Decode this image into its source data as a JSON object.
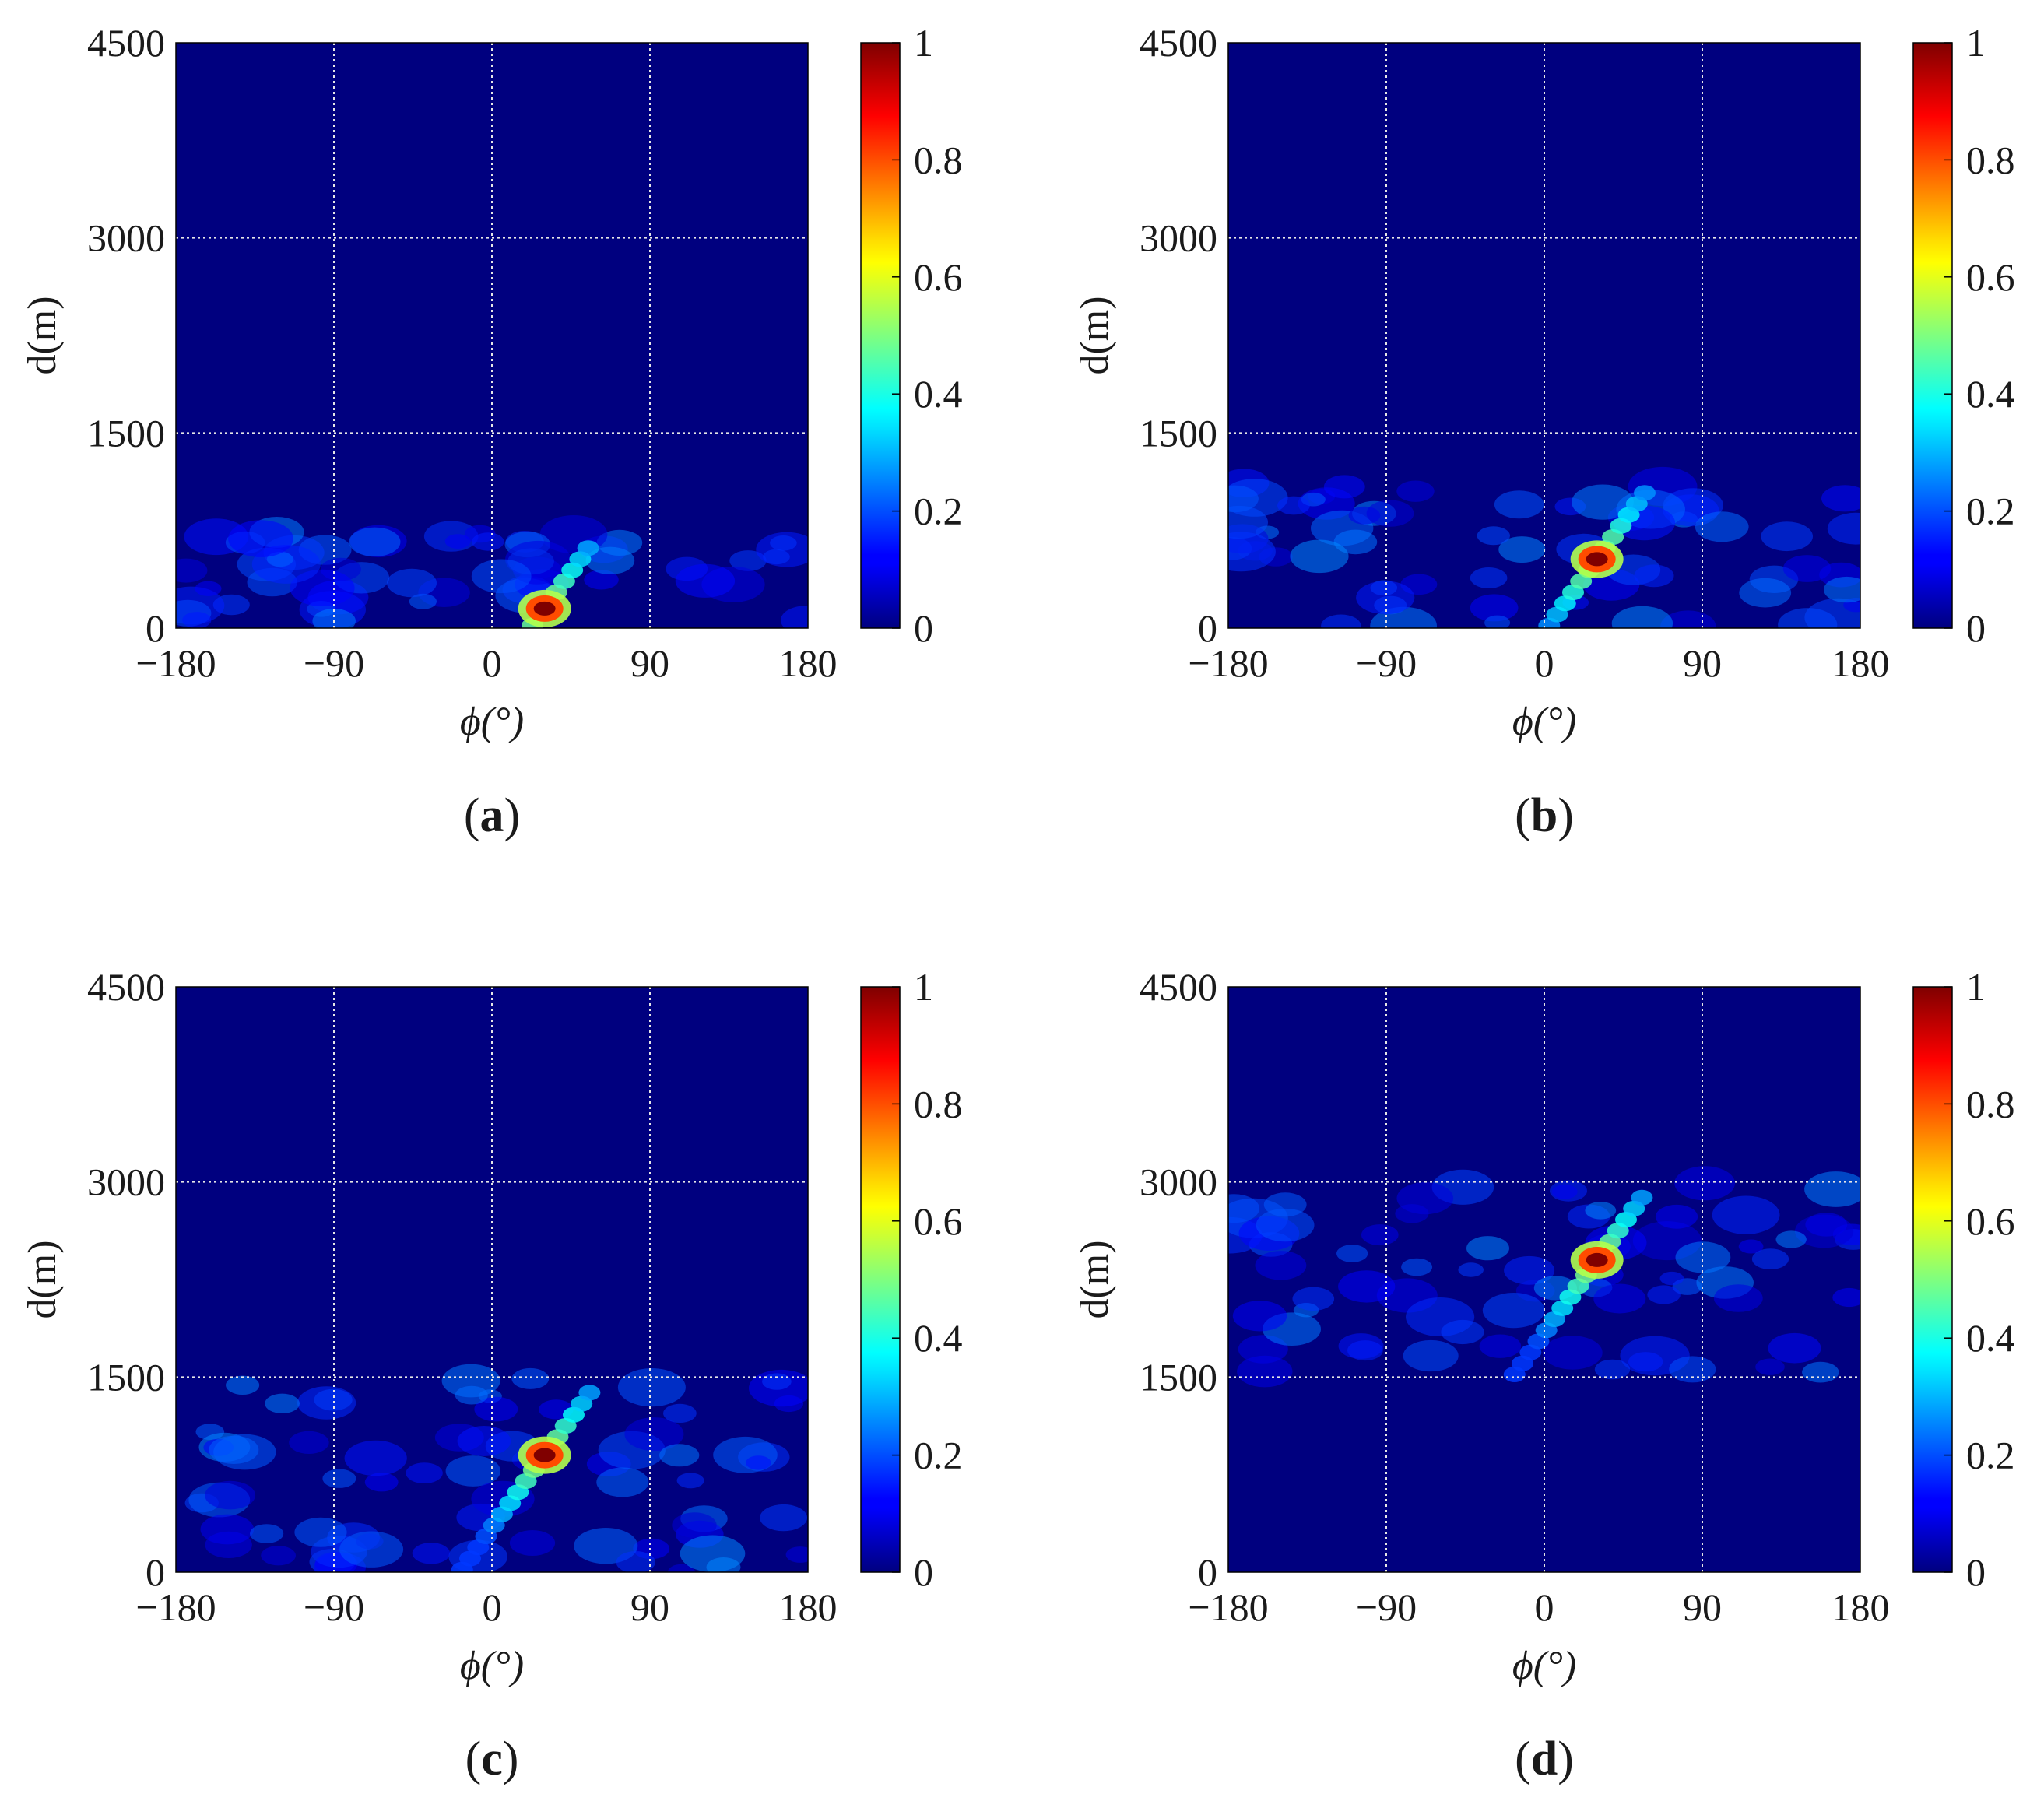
{
  "figure": {
    "colormap": "jet",
    "colors": {
      "background_field": "#00007f",
      "grid": "#e6e6e6",
      "frame": "#000000",
      "text": "#1a1a1a"
    }
  },
  "chart_data": [
    {
      "type": "heatmap",
      "panel_label": "(a)",
      "panel_label_letter": "a",
      "xlabel": "ϕ(°)",
      "ylabel": "d(m)",
      "xlim": [
        -180,
        180
      ],
      "ylim": [
        0,
        4500
      ],
      "xticks": [
        -180,
        -90,
        0,
        90,
        180
      ],
      "xtick_labels": [
        "−180",
        "−90",
        "0",
        "90",
        "180"
      ],
      "yticks": [
        0,
        1500,
        3000,
        4500
      ],
      "ytick_labels": [
        "0",
        "1500",
        "3000",
        "4500"
      ],
      "colorbar": {
        "range": [
          0,
          1
        ],
        "ticks": [
          "0",
          "0.2",
          "0.4",
          "0.6",
          "0.8",
          "1"
        ]
      },
      "grid": true,
      "region_d_range": [
        0,
        750
      ],
      "peak": {
        "phi": 30,
        "d": 150,
        "value": 1.0
      }
    },
    {
      "type": "heatmap",
      "panel_label": "(b)",
      "panel_label_letter": "b",
      "xlabel": "ϕ(°)",
      "ylabel": "d(m)",
      "xlim": [
        -180,
        180
      ],
      "ylim": [
        0,
        4500
      ],
      "xticks": [
        -180,
        -90,
        0,
        90,
        180
      ],
      "xtick_labels": [
        "−180",
        "−90",
        "0",
        "90",
        "180"
      ],
      "yticks": [
        0,
        1500,
        3000,
        4500
      ],
      "ytick_labels": [
        "0",
        "1500",
        "3000",
        "4500"
      ],
      "colorbar": {
        "range": [
          0,
          1
        ],
        "ticks": [
          "0",
          "0.2",
          "0.4",
          "0.6",
          "0.8",
          "1"
        ]
      },
      "grid": true,
      "region_d_range": [
        0,
        1120
      ],
      "peak": {
        "phi": 30,
        "d": 530,
        "value": 1.0
      }
    },
    {
      "type": "heatmap",
      "panel_label": "(c)",
      "panel_label_letter": "c",
      "xlabel": "ϕ(°)",
      "ylabel": "d(m)",
      "xlim": [
        -180,
        180
      ],
      "ylim": [
        0,
        4500
      ],
      "xticks": [
        -180,
        -90,
        0,
        90,
        180
      ],
      "xtick_labels": [
        "−180",
        "−90",
        "0",
        "90",
        "180"
      ],
      "yticks": [
        0,
        1500,
        3000,
        4500
      ],
      "ytick_labels": [
        "0",
        "1500",
        "3000",
        "4500"
      ],
      "colorbar": {
        "range": [
          0,
          1
        ],
        "ticks": [
          "0",
          "0.2",
          "0.4",
          "0.6",
          "0.8",
          "1"
        ]
      },
      "grid": true,
      "region_d_range": [
        0,
        1500
      ],
      "peak": {
        "phi": 30,
        "d": 900,
        "value": 1.0
      }
    },
    {
      "type": "heatmap",
      "panel_label": "(d)",
      "panel_label_letter": "d",
      "xlabel": "ϕ(°)",
      "ylabel": "d(m)",
      "xlim": [
        -180,
        180
      ],
      "ylim": [
        0,
        4500
      ],
      "xticks": [
        -180,
        -90,
        0,
        90,
        180
      ],
      "xtick_labels": [
        "−180",
        "−90",
        "0",
        "90",
        "180"
      ],
      "yticks": [
        0,
        1500,
        3000,
        4500
      ],
      "ytick_labels": [
        "0",
        "1500",
        "3000",
        "4500"
      ],
      "colorbar": {
        "range": [
          0,
          1
        ],
        "ticks": [
          "0",
          "0.2",
          "0.4",
          "0.6",
          "0.8",
          "1"
        ]
      },
      "grid": true,
      "region_d_range": [
        1500,
        3000
      ],
      "peak": {
        "phi": 30,
        "d": 2400,
        "value": 1.0
      }
    }
  ]
}
